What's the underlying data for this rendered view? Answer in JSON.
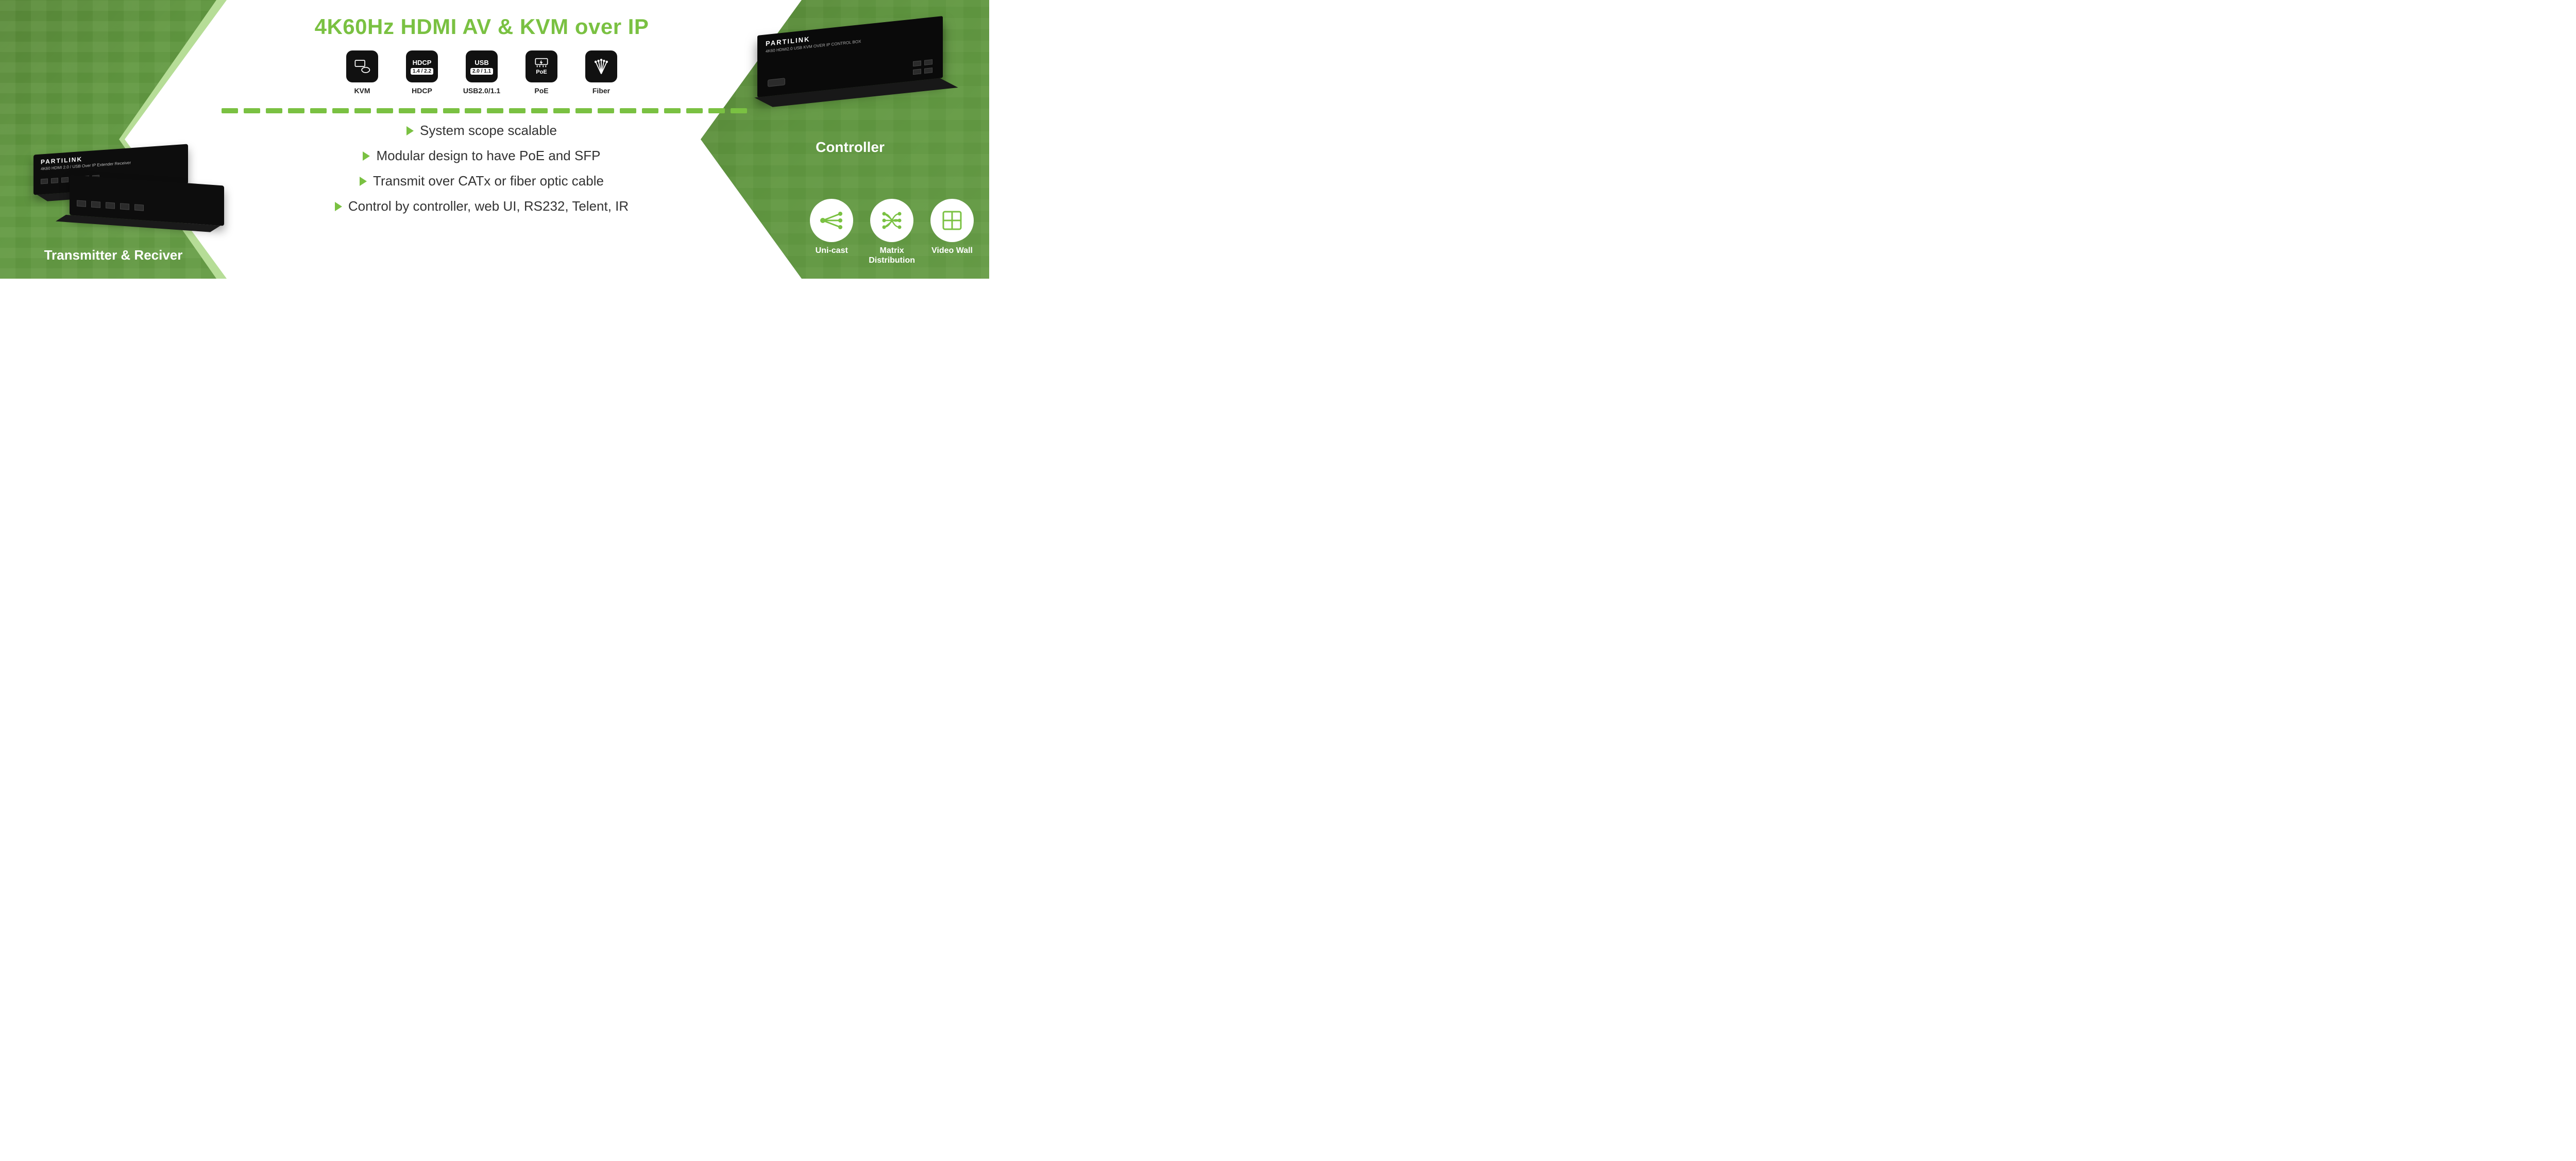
{
  "colors": {
    "green": "#7ac142",
    "title": "#7ac142",
    "text": "#333333",
    "black": "#0d0d0d",
    "white": "#ffffff"
  },
  "title": "4K60Hz HDMI AV & KVM over IP",
  "specs": [
    {
      "top": "",
      "sub": "",
      "label": "KVM",
      "icon": "kvm"
    },
    {
      "top": "HDCP",
      "sub": "1.4 / 2.2",
      "label": "HDCP",
      "icon": "hdcp"
    },
    {
      "top": "USB",
      "sub": "2.0 / 1.1",
      "label": "USB2.0/1.1",
      "icon": "usb"
    },
    {
      "top": "PoE",
      "sub": "",
      "label": "PoE",
      "icon": "poe"
    },
    {
      "top": "",
      "sub": "",
      "label": "Fiber",
      "icon": "fiber"
    }
  ],
  "dash_count": 24,
  "dash_color": "#7ac142",
  "features": [
    "System scope scalable",
    "Modular design to have PoE and SFP",
    "Transmit over CATx or fiber optic cable",
    "Control by controller, web UI, RS232, Telent, IR"
  ],
  "left": {
    "brand": "PARTILINK",
    "product_sub": "4K60 HDMI 2.0 / USB Over IP Extender    Receiver",
    "label": "Transmitter & Reciver"
  },
  "right": {
    "brand": "PARTILINK",
    "product_sub": "4K60 HDMI2.0 USB KVM OVER IP CONTROL BOX",
    "label": "Controller"
  },
  "circle_icons": [
    {
      "label": "Uni-cast",
      "svg": "unicast"
    },
    {
      "label": "Matrix\nDistribution",
      "svg": "matrix"
    },
    {
      "label": "Video Wall",
      "svg": "videowall"
    }
  ]
}
